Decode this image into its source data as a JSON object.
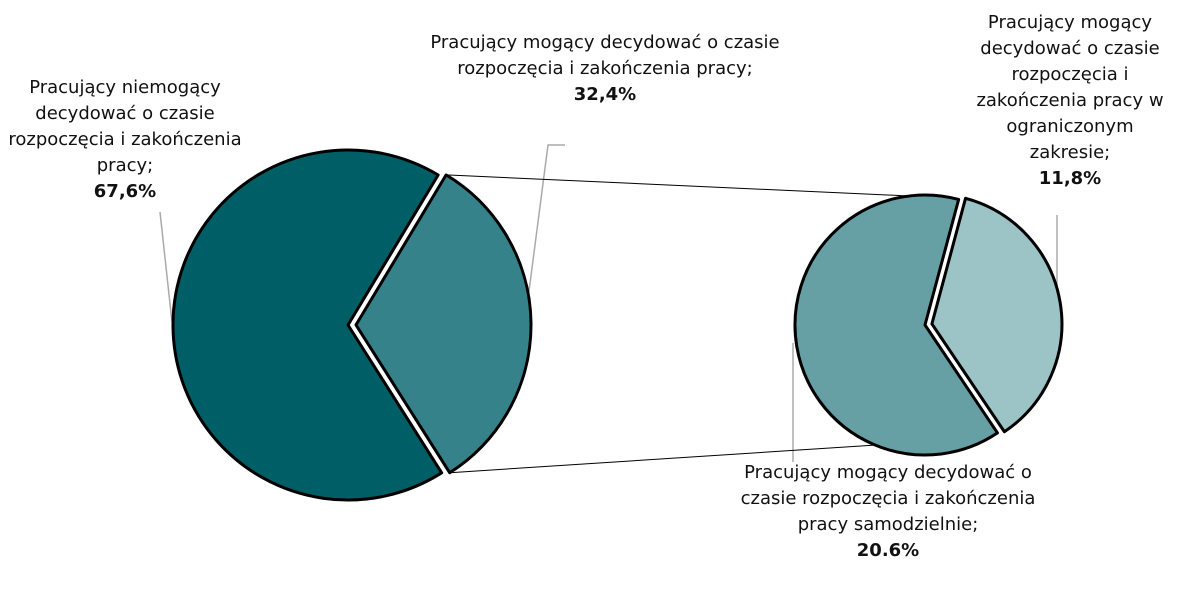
{
  "chart_data": {
    "type": "pie",
    "categories": [
      "Pracujący niemogący decydować o czasie rozpoczęcia i zakończenia pracy;",
      "Pracujący mogący decydować o czasie rozpoczęcia i zakończenia pracy;"
    ],
    "values": [
      67.6,
      32.4
    ],
    "value_labels": [
      "67,6%",
      "32,4%"
    ],
    "colors": [
      "#005f66",
      "#36828a"
    ],
    "breakdown": {
      "categories": [
        "Pracujący mogący decydować o czasie rozpoczęcia i zakończenia pracy samodzielnie;",
        "Pracujący mogący decydować o czasie rozpoczęcia i zakończenia pracy w ograniczonym zakresie;"
      ],
      "values": [
        20.6,
        11.8
      ],
      "value_labels": [
        "20.6%",
        "11,8%"
      ],
      "colors": [
        "#66a0a4",
        "#9cc3c5"
      ]
    }
  }
}
